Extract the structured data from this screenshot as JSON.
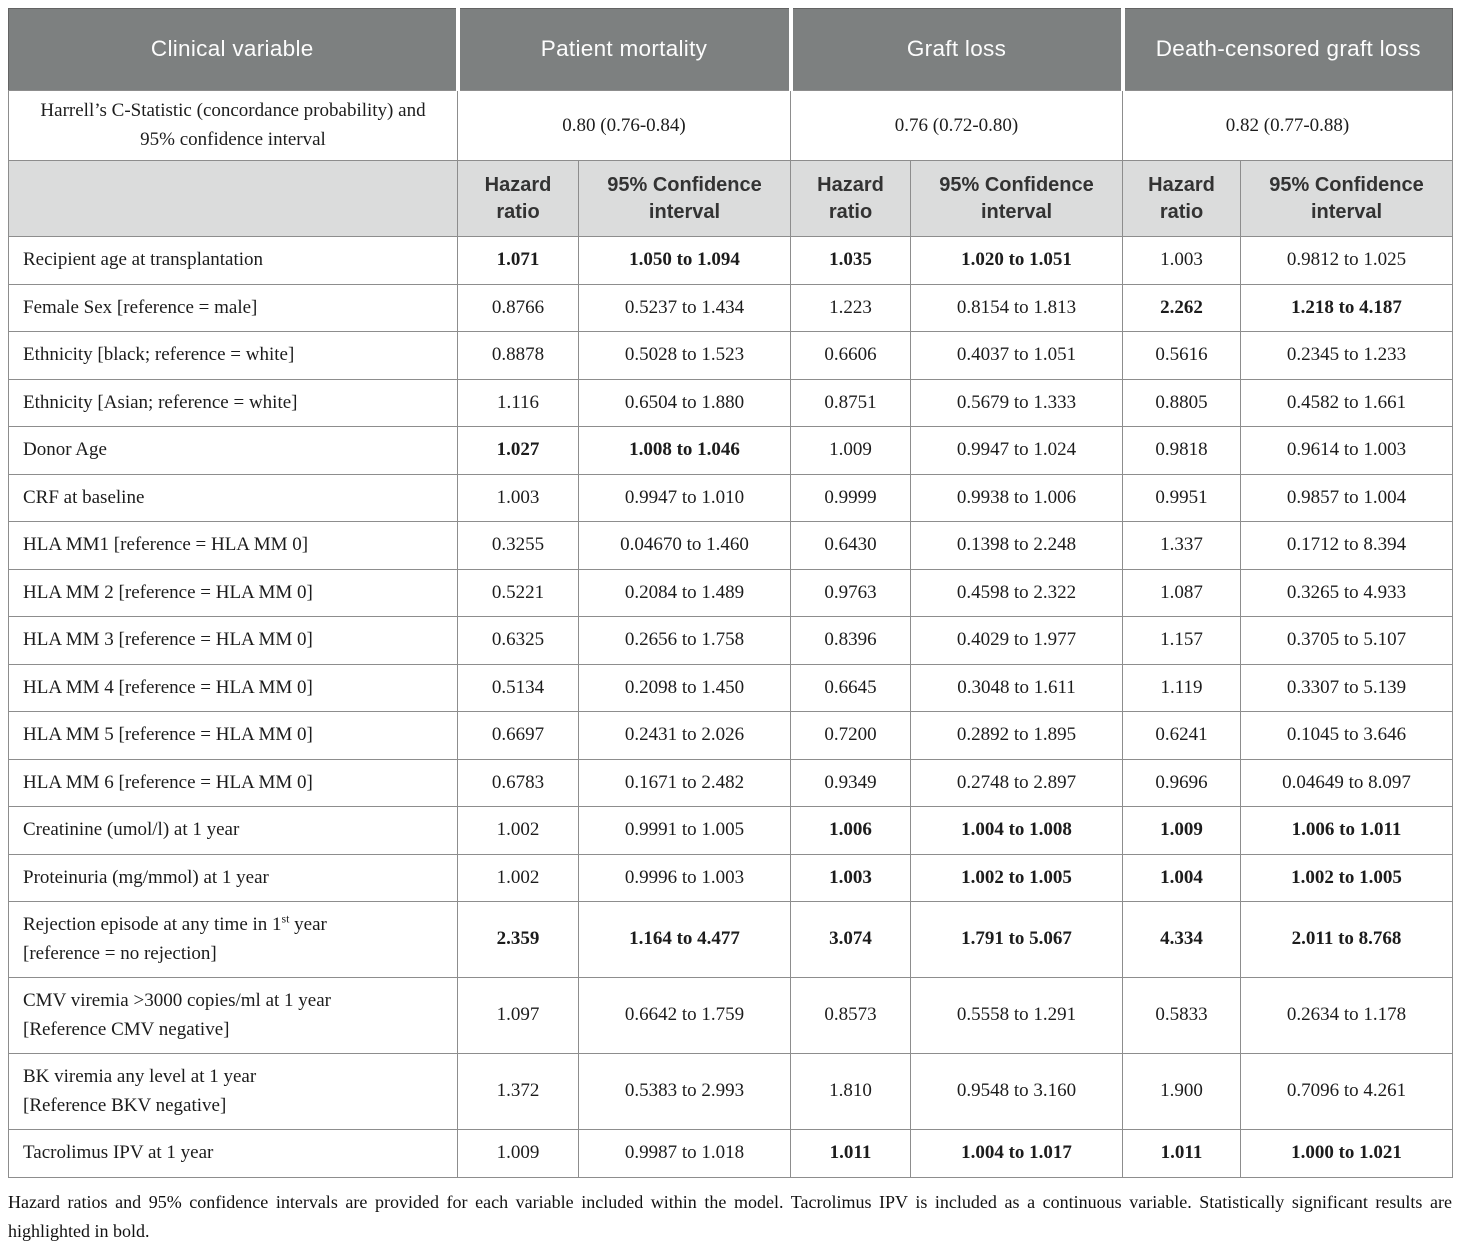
{
  "colors": {
    "header_bg": "#7d8080",
    "subheader_bg": "#dbdcdc"
  },
  "table": {
    "header": {
      "clinical_variable": "Clinical variable",
      "groups": [
        "Patient mortality",
        "Graft loss",
        "Death-censored graft loss"
      ]
    },
    "c_statistic": {
      "label": "Harrell’s C-Statistic (concordance probability) and 95% confidence interval",
      "values": [
        "0.80 (0.76-0.84)",
        "0.76 (0.72-0.80)",
        "0.82 (0.77-0.88)"
      ]
    },
    "subheader": {
      "hazard_ratio": "Hazard ratio",
      "confidence_interval": "95% Confidence interval"
    },
    "rows": [
      {
        "label": "Recipient age at transplantation",
        "cells": [
          {
            "v": "1.071",
            "b": true
          },
          {
            "v": "1.050 to 1.094",
            "b": true
          },
          {
            "v": "1.035",
            "b": true
          },
          {
            "v": "1.020 to 1.051",
            "b": true
          },
          {
            "v": "1.003",
            "b": false
          },
          {
            "v": "0.9812 to 1.025",
            "b": false
          }
        ]
      },
      {
        "label": "Female Sex [reference = male]",
        "cells": [
          {
            "v": "0.8766",
            "b": false
          },
          {
            "v": "0.5237 to 1.434",
            "b": false
          },
          {
            "v": "1.223",
            "b": false
          },
          {
            "v": "0.8154 to 1.813",
            "b": false
          },
          {
            "v": "2.262",
            "b": true
          },
          {
            "v": "1.218 to 4.187",
            "b": true
          }
        ]
      },
      {
        "label": "Ethnicity [black; reference = white]",
        "cells": [
          {
            "v": "0.8878",
            "b": false
          },
          {
            "v": "0.5028 to 1.523",
            "b": false
          },
          {
            "v": "0.6606",
            "b": false
          },
          {
            "v": "0.4037 to 1.051",
            "b": false
          },
          {
            "v": "0.5616",
            "b": false
          },
          {
            "v": "0.2345 to 1.233",
            "b": false
          }
        ]
      },
      {
        "label": "Ethnicity [Asian; reference = white]",
        "cells": [
          {
            "v": "1.116",
            "b": false
          },
          {
            "v": "0.6504 to 1.880",
            "b": false
          },
          {
            "v": "0.8751",
            "b": false
          },
          {
            "v": "0.5679 to 1.333",
            "b": false
          },
          {
            "v": "0.8805",
            "b": false
          },
          {
            "v": "0.4582 to 1.661",
            "b": false
          }
        ]
      },
      {
        "label": "Donor Age",
        "cells": [
          {
            "v": "1.027",
            "b": true
          },
          {
            "v": "1.008 to 1.046",
            "b": true
          },
          {
            "v": "1.009",
            "b": false
          },
          {
            "v": "0.9947 to 1.024",
            "b": false
          },
          {
            "v": "0.9818",
            "b": false
          },
          {
            "v": "0.9614 to 1.003",
            "b": false
          }
        ]
      },
      {
        "label": "CRF at baseline",
        "cells": [
          {
            "v": "1.003",
            "b": false
          },
          {
            "v": "0.9947 to 1.010",
            "b": false
          },
          {
            "v": "0.9999",
            "b": false
          },
          {
            "v": "0.9938 to 1.006",
            "b": false
          },
          {
            "v": "0.9951",
            "b": false
          },
          {
            "v": "0.9857 to 1.004",
            "b": false
          }
        ]
      },
      {
        "label": "HLA MM1 [reference = HLA MM 0]",
        "cells": [
          {
            "v": "0.3255",
            "b": false
          },
          {
            "v": "0.04670 to 1.460",
            "b": false
          },
          {
            "v": "0.6430",
            "b": false
          },
          {
            "v": "0.1398 to 2.248",
            "b": false
          },
          {
            "v": "1.337",
            "b": false
          },
          {
            "v": "0.1712 to 8.394",
            "b": false
          }
        ]
      },
      {
        "label": "HLA MM 2 [reference = HLA MM 0]",
        "cells": [
          {
            "v": "0.5221",
            "b": false
          },
          {
            "v": "0.2084 to 1.489",
            "b": false
          },
          {
            "v": "0.9763",
            "b": false
          },
          {
            "v": "0.4598 to 2.322",
            "b": false
          },
          {
            "v": "1.087",
            "b": false
          },
          {
            "v": "0.3265 to 4.933",
            "b": false
          }
        ]
      },
      {
        "label": "HLA MM 3 [reference = HLA MM 0]",
        "cells": [
          {
            "v": "0.6325",
            "b": false
          },
          {
            "v": "0.2656 to 1.758",
            "b": false
          },
          {
            "v": "0.8396",
            "b": false
          },
          {
            "v": "0.4029 to 1.977",
            "b": false
          },
          {
            "v": "1.157",
            "b": false
          },
          {
            "v": "0.3705 to 5.107",
            "b": false
          }
        ]
      },
      {
        "label": "HLA MM 4 [reference = HLA MM 0]",
        "cells": [
          {
            "v": "0.5134",
            "b": false
          },
          {
            "v": "0.2098 to 1.450",
            "b": false
          },
          {
            "v": "0.6645",
            "b": false
          },
          {
            "v": "0.3048 to 1.611",
            "b": false
          },
          {
            "v": "1.119",
            "b": false
          },
          {
            "v": "0.3307 to 5.139",
            "b": false
          }
        ]
      },
      {
        "label": "HLA MM 5 [reference = HLA MM 0]",
        "cells": [
          {
            "v": "0.6697",
            "b": false
          },
          {
            "v": "0.2431 to 2.026",
            "b": false
          },
          {
            "v": "0.7200",
            "b": false
          },
          {
            "v": "0.2892 to 1.895",
            "b": false
          },
          {
            "v": "0.6241",
            "b": false
          },
          {
            "v": "0.1045 to 3.646",
            "b": false
          }
        ]
      },
      {
        "label": "HLA MM 6 [reference = HLA MM 0]",
        "cells": [
          {
            "v": "0.6783",
            "b": false
          },
          {
            "v": "0.1671 to 2.482",
            "b": false
          },
          {
            "v": "0.9349",
            "b": false
          },
          {
            "v": "0.2748 to 2.897",
            "b": false
          },
          {
            "v": "0.9696",
            "b": false
          },
          {
            "v": "0.04649 to 8.097",
            "b": false
          }
        ]
      },
      {
        "label": "Creatinine (umol/l) at 1 year",
        "cells": [
          {
            "v": "1.002",
            "b": false
          },
          {
            "v": "0.9991 to 1.005",
            "b": false
          },
          {
            "v": "1.006",
            "b": true
          },
          {
            "v": "1.004 to 1.008",
            "b": true
          },
          {
            "v": "1.009",
            "b": true
          },
          {
            "v": "1.006 to 1.011",
            "b": true
          }
        ]
      },
      {
        "label": "Proteinuria (mg/mmol) at 1 year",
        "cells": [
          {
            "v": "1.002",
            "b": false
          },
          {
            "v": "0.9996 to 1.003",
            "b": false
          },
          {
            "v": "1.003",
            "b": true
          },
          {
            "v": "1.002 to 1.005",
            "b": true
          },
          {
            "v": "1.004",
            "b": true
          },
          {
            "v": "1.002 to 1.005",
            "b": true
          }
        ]
      },
      {
        "label_parts": {
          "pre": "Rejection episode at any time in 1",
          "sup": "st",
          "post": " year"
        },
        "label2": "[reference = no rejection]",
        "cells": [
          {
            "v": "2.359",
            "b": true
          },
          {
            "v": "1.164 to 4.477",
            "b": true
          },
          {
            "v": "3.074",
            "b": true
          },
          {
            "v": "1.791 to 5.067",
            "b": true
          },
          {
            "v": "4.334",
            "b": true
          },
          {
            "v": "2.011 to 8.768",
            "b": true
          }
        ]
      },
      {
        "label": "CMV viremia >3000 copies/ml at 1 year",
        "label2": "[Reference CMV negative]",
        "cells": [
          {
            "v": "1.097",
            "b": false
          },
          {
            "v": "0.6642 to 1.759",
            "b": false
          },
          {
            "v": "0.8573",
            "b": false
          },
          {
            "v": "0.5558 to 1.291",
            "b": false
          },
          {
            "v": "0.5833",
            "b": false
          },
          {
            "v": "0.2634 to 1.178",
            "b": false
          }
        ]
      },
      {
        "label": "BK viremia any level at 1 year",
        "label2": "[Reference BKV negative]",
        "cells": [
          {
            "v": "1.372",
            "b": false
          },
          {
            "v": "0.5383 to 2.993",
            "b": false
          },
          {
            "v": "1.810",
            "b": false
          },
          {
            "v": "0.9548 to 3.160",
            "b": false
          },
          {
            "v": "1.900",
            "b": false
          },
          {
            "v": "0.7096 to 4.261",
            "b": false
          }
        ]
      },
      {
        "label": "Tacrolimus IPV at 1 year",
        "cells": [
          {
            "v": "1.009",
            "b": false
          },
          {
            "v": "0.9987 to 1.018",
            "b": false
          },
          {
            "v": "1.011",
            "b": true
          },
          {
            "v": "1.004 to 1.017",
            "b": true
          },
          {
            "v": "1.011",
            "b": true
          },
          {
            "v": "1.000 to 1.021",
            "b": true
          }
        ]
      }
    ]
  },
  "footnote": "Hazard ratios and 95% confidence intervals are provided for each variable included within the model. Tacrolimus IPV is included as a continuous variable. Statistically significant results are highlighted in bold."
}
